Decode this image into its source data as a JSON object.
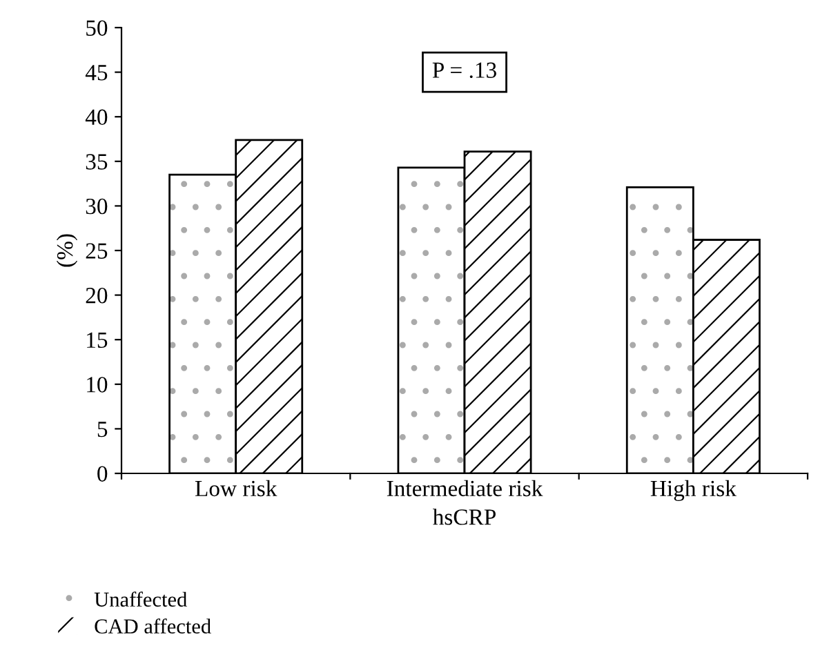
{
  "chart_data": {
    "type": "bar",
    "xlabel": "hsCRP",
    "ylabel": "(%)",
    "categories": [
      "Low risk",
      "Intermediate risk",
      "High risk"
    ],
    "series": [
      {
        "name": "Unaffected",
        "color": "#ffffff",
        "values": [
          33.5,
          34.3,
          32.1
        ]
      },
      {
        "name": "CAD affected",
        "color": "#ffffff",
        "values": [
          37.4,
          36.1,
          26.2
        ]
      }
    ],
    "ylim": [
      0,
      50
    ],
    "yticks": [
      0,
      5,
      10,
      15,
      20,
      25,
      30,
      35,
      40,
      45,
      50
    ],
    "annotations": [
      "P = .13"
    ],
    "grid": false,
    "legend": "bottom left"
  }
}
